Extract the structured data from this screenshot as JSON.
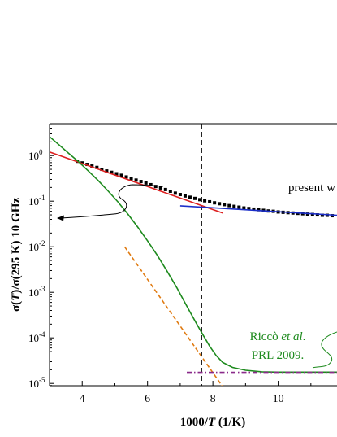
{
  "chart_data": {
    "type": "scatter",
    "xlabel_parts": [
      "1000/",
      "T",
      " (1/K)"
    ],
    "ylabel_parts": [
      "σ(",
      "T",
      ")/σ(295 K) 10 GHz"
    ],
    "xlim": [
      3,
      11.8
    ],
    "ylim_log10": [
      -5.05,
      0.7
    ],
    "y_scale": "log",
    "x_ticks": [
      4,
      6,
      8,
      10
    ],
    "x_tick_labels": [
      "4",
      "6",
      "8",
      "10"
    ],
    "y_ticks_exp": [
      0,
      -1,
      -2,
      -3,
      -4,
      -5
    ],
    "y_tick_labels": [
      "10",
      "10",
      "10",
      "10",
      "10",
      "10"
    ],
    "y_tick_sups": [
      "0",
      "-1",
      "-2",
      "-3",
      "-4",
      "-5"
    ],
    "vline_x": 7.65,
    "series": [
      {
        "kind": "scatter",
        "color": "#000000",
        "points": [
          [
            3.85,
            0.75
          ],
          [
            4.0,
            0.69
          ],
          [
            4.15,
            0.64
          ],
          [
            4.3,
            0.59
          ],
          [
            4.45,
            0.55
          ],
          [
            4.6,
            0.5
          ],
          [
            4.75,
            0.46
          ],
          [
            4.9,
            0.43
          ],
          [
            5.05,
            0.4
          ],
          [
            5.2,
            0.37
          ],
          [
            5.35,
            0.34
          ],
          [
            5.5,
            0.31
          ],
          [
            5.65,
            0.29
          ],
          [
            5.8,
            0.27
          ],
          [
            5.95,
            0.25
          ],
          [
            6.1,
            0.23
          ],
          [
            6.25,
            0.21
          ],
          [
            6.4,
            0.195
          ],
          [
            6.55,
            0.18
          ],
          [
            6.7,
            0.165
          ],
          [
            6.85,
            0.15
          ],
          [
            7.0,
            0.14
          ],
          [
            7.15,
            0.13
          ],
          [
            7.3,
            0.122
          ],
          [
            7.45,
            0.115
          ],
          [
            7.6,
            0.108
          ],
          [
            7.75,
            0.102
          ],
          [
            7.9,
            0.097
          ],
          [
            8.05,
            0.092
          ],
          [
            8.2,
            0.088
          ],
          [
            8.35,
            0.084
          ],
          [
            8.5,
            0.08
          ],
          [
            8.65,
            0.077
          ],
          [
            8.8,
            0.074
          ],
          [
            8.95,
            0.071
          ],
          [
            9.1,
            0.069
          ],
          [
            9.25,
            0.067
          ],
          [
            9.4,
            0.065
          ],
          [
            9.55,
            0.063
          ],
          [
            9.7,
            0.061
          ],
          [
            9.85,
            0.06
          ],
          [
            10.0,
            0.058
          ],
          [
            10.15,
            0.057
          ],
          [
            10.3,
            0.056
          ],
          [
            10.45,
            0.055
          ],
          [
            10.6,
            0.054
          ],
          [
            10.75,
            0.053
          ],
          [
            10.9,
            0.052
          ],
          [
            11.05,
            0.051
          ],
          [
            11.2,
            0.05
          ],
          [
            11.35,
            0.049
          ],
          [
            11.5,
            0.049
          ],
          [
            11.65,
            0.048
          ]
        ]
      },
      {
        "kind": "line",
        "color": "#dd1f1f",
        "dash": "",
        "points": [
          [
            3.0,
            1.2
          ],
          [
            8.3,
            0.055
          ]
        ]
      },
      {
        "kind": "line",
        "color": "#1c2fc9",
        "dash": "",
        "points": [
          [
            7.0,
            0.079
          ],
          [
            11.8,
            0.049
          ]
        ]
      },
      {
        "kind": "line",
        "color": "#1d8a1d",
        "dash": "",
        "points": [
          [
            3.0,
            2.6
          ],
          [
            3.3,
            1.7
          ],
          [
            3.6,
            1.1
          ],
          [
            3.9,
            0.72
          ],
          [
            4.2,
            0.45
          ],
          [
            4.5,
            0.28
          ],
          [
            4.8,
            0.165
          ],
          [
            5.1,
            0.095
          ],
          [
            5.4,
            0.052
          ],
          [
            5.7,
            0.027
          ],
          [
            6.0,
            0.0135
          ],
          [
            6.3,
            0.0065
          ],
          [
            6.6,
            0.0029
          ],
          [
            6.9,
            0.00125
          ],
          [
            7.1,
            0.00068
          ],
          [
            7.3,
            0.00037
          ],
          [
            7.5,
            0.000205
          ],
          [
            7.7,
            0.000115
          ],
          [
            7.9,
            6.6e-05
          ],
          [
            8.1,
            4.1e-05
          ],
          [
            8.3,
            2.9e-05
          ],
          [
            8.6,
            2.25e-05
          ],
          [
            9.0,
            1.95e-05
          ],
          [
            9.5,
            1.8e-05
          ],
          [
            10.0,
            1.77e-05
          ],
          [
            11.0,
            1.77e-05
          ],
          [
            11.8,
            1.77e-05
          ]
        ]
      },
      {
        "kind": "line",
        "color": "#e07b12",
        "dash": "5,3",
        "points": [
          [
            5.3,
            0.01
          ],
          [
            8.3,
            8.5e-06
          ]
        ]
      },
      {
        "kind": "line",
        "color": "#8a2a8a",
        "dash": "6,3,1.5,3",
        "points": [
          [
            7.2,
            1.75e-05
          ],
          [
            11.8,
            1.75e-05
          ]
        ]
      }
    ],
    "annotations": [
      {
        "text": "present w",
        "color": "#000000"
      },
      {
        "text_parts": [
          "Riccò ",
          "et al",
          "."
        ],
        "color": "#1d8a1d"
      },
      {
        "text": "PRL 2009.",
        "color": "#1d8a1d"
      }
    ]
  }
}
